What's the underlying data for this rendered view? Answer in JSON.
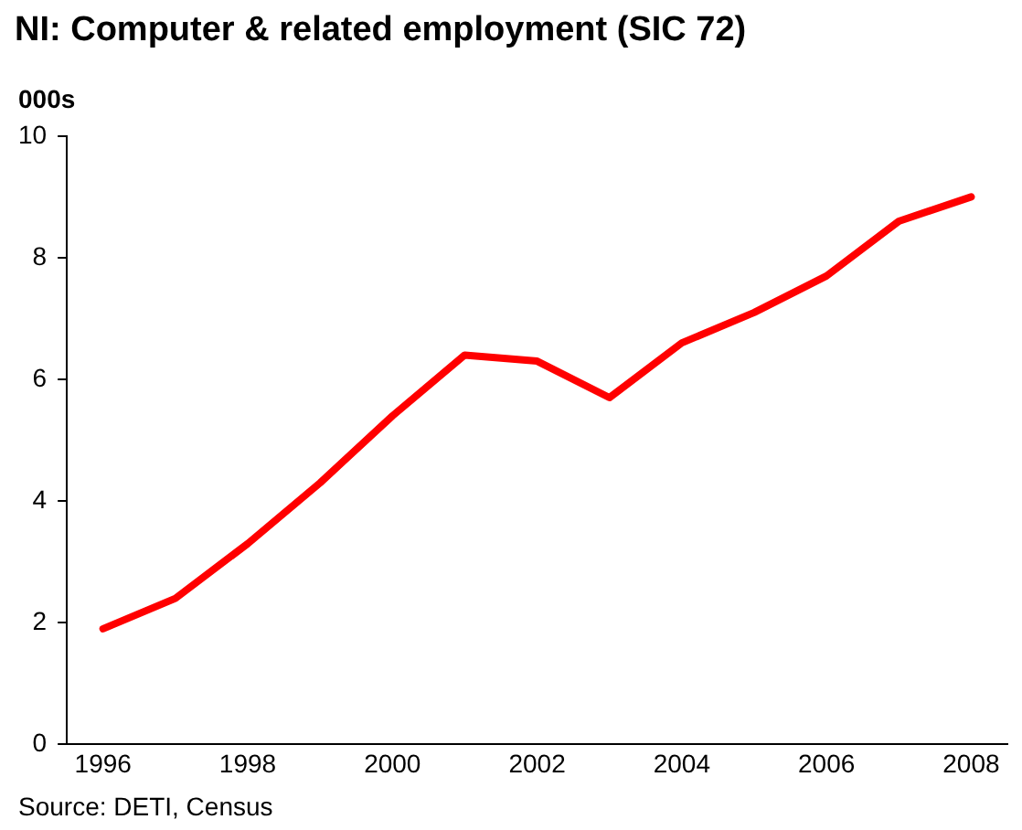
{
  "chart_data": {
    "type": "line",
    "title": "NI: Computer & related employment (SIC 72)",
    "ylabel": "000s",
    "categories": [
      "1996",
      null,
      "1998",
      null,
      "2000",
      null,
      "2002",
      null,
      "2004",
      null,
      "2006",
      null,
      "2008"
    ],
    "series": [
      {
        "color": "#ff0000",
        "values": [
          1.9,
          2.4,
          3.3,
          4.3,
          5.4,
          6.4,
          6.3,
          5.7,
          6.6,
          7.1,
          7.7,
          8.6,
          9.0
        ]
      }
    ],
    "ylim": [
      0,
      10
    ],
    "yticks": [
      0,
      2,
      4,
      6,
      8,
      10
    ],
    "grid": false,
    "legend": false,
    "marker": "none",
    "line_style": "solid",
    "annotations": [
      "Source: DETI, Census"
    ]
  }
}
